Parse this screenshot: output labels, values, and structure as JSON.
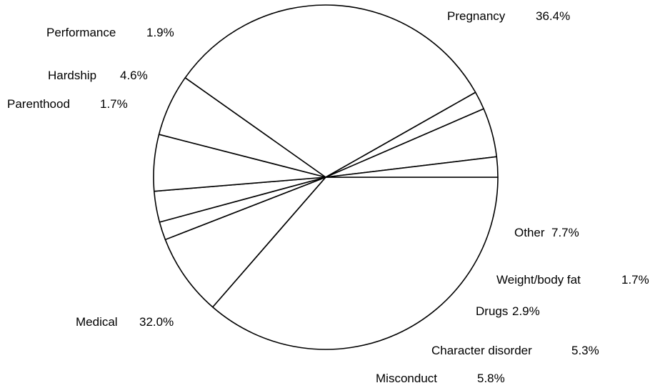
{
  "chart_data": {
    "type": "pie",
    "title": "",
    "slices": [
      {
        "label": "Pregnancy",
        "value_text": "36.4%",
        "value": 36.4
      },
      {
        "label": "Other",
        "value_text": "7.7%",
        "value": 7.7
      },
      {
        "label": "Weight/body fat",
        "value_text": "1.7%",
        "value": 1.7
      },
      {
        "label": "Drugs",
        "value_text": "2.9%",
        "value": 2.9
      },
      {
        "label": "Character disorder",
        "value_text": "5.3%",
        "value": 5.3
      },
      {
        "label": "Misconduct",
        "value_text": "5.8%",
        "value": 5.8
      },
      {
        "label": "Medical",
        "value_text": "32.0%",
        "value": 32.0
      },
      {
        "label": "Parenthood",
        "value_text": "1.7%",
        "value": 1.7
      },
      {
        "label": "Hardship",
        "value_text": "4.6%",
        "value": 4.6
      },
      {
        "label": "Performance",
        "value_text": "1.9%",
        "value": 1.9
      }
    ],
    "colors": {
      "fill": "#ffffff",
      "stroke": "#000000"
    },
    "legend": "none",
    "labels": "outside, name followed by percentage"
  }
}
